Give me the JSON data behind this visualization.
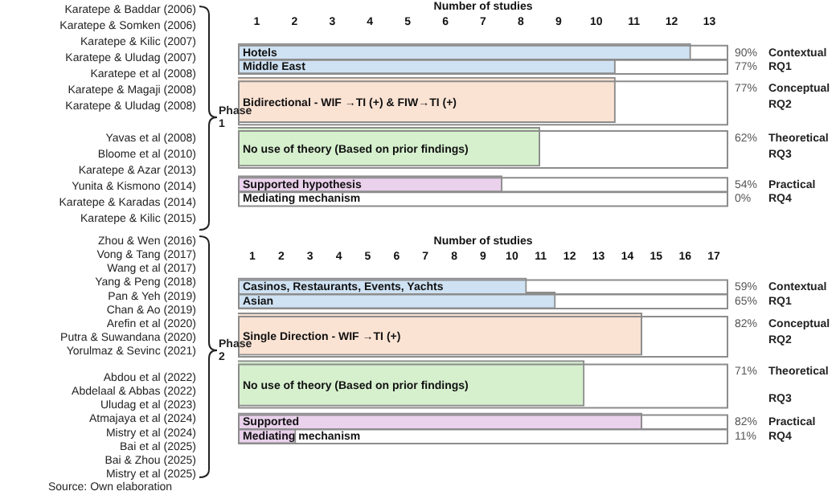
{
  "chart_data": [
    {
      "type": "bar",
      "orientation": "horizontal",
      "xlabel": "Number of studies",
      "xlim": [
        0,
        13
      ],
      "xticks": [
        {
          "value": 0.5,
          "label": "1"
        },
        {
          "value": 1.5,
          "label": "2"
        },
        {
          "value": 2.5,
          "label": "3"
        },
        {
          "value": 3.5,
          "label": "4"
        },
        {
          "value": 4.5,
          "label": "5"
        },
        {
          "value": 5.5,
          "label": "6"
        },
        {
          "value": 6.5,
          "label": "7"
        },
        {
          "value": 7.5,
          "label": "8"
        },
        {
          "value": 8.5,
          "label": "9"
        },
        {
          "value": 9.5,
          "label": "10"
        },
        {
          "value": 10.5,
          "label": "11"
        },
        {
          "value": 11.5,
          "label": "12"
        },
        {
          "value": 12.5,
          "label": "13"
        }
      ],
      "categories": [
        "Hotels",
        "Middle East",
        "Bidirectional - WIF →TI (+) & FIW→TI (+)",
        "No use of theory (Based on prior findings)",
        "Supported hypothesis",
        "Mediating mechanism"
      ],
      "values": [
        12,
        10,
        10,
        8,
        7,
        0
      ],
      "colors": [
        "#cfe2f3",
        "#cfe2f3",
        "#fbe3d4",
        "#d6f0ce",
        "#ead1ec",
        "#ffffff"
      ],
      "grid": false,
      "legend": false,
      "annotations": [
        "Karatepe & Baddar (2006)",
        "Karatepe & Somken (2006)",
        "Karatepe & Kilic (2007)",
        "Karatepe & Uludag (2007)",
        "Karatepe et al (2008)",
        "Karatepe & Magaji (2008)",
        "Karatepe & Uludag (2008)",
        "Yavas et al (2008)",
        "Bloome et al (2010)",
        "Karatepe & Azar (2013)",
        "Yunita & Kismono (2014)",
        "Karatepe & Karadas (2014)",
        "Karatepe & Kilic (2015)",
        "Phase 1",
        "Contextual",
        "RQ1",
        "Conceptual",
        "RQ2",
        "Theoretical",
        "RQ3",
        "Practical",
        "RQ4",
        "90%",
        "77%",
        "77%",
        "62%",
        "54%",
        "0%"
      ]
    },
    {
      "type": "bar",
      "orientation": "horizontal",
      "xlabel": "Number of studies",
      "xlim": [
        0,
        17
      ],
      "xticks": [
        {
          "value": 0.5,
          "label": "1"
        },
        {
          "value": 1.5,
          "label": "2"
        },
        {
          "value": 2.5,
          "label": "3"
        },
        {
          "value": 3.5,
          "label": "4"
        },
        {
          "value": 4.5,
          "label": "5"
        },
        {
          "value": 5.5,
          "label": "6"
        },
        {
          "value": 6.5,
          "label": "7"
        },
        {
          "value": 7.5,
          "label": "8"
        },
        {
          "value": 8.5,
          "label": "9"
        },
        {
          "value": 9.5,
          "label": "10"
        },
        {
          "value": 10.5,
          "label": "11"
        },
        {
          "value": 11.5,
          "label": "12"
        },
        {
          "value": 12.5,
          "label": "13"
        },
        {
          "value": 13.5,
          "label": "14"
        },
        {
          "value": 14.5,
          "label": "15"
        },
        {
          "value": 15.5,
          "label": "16"
        },
        {
          "value": 16.5,
          "label": "17"
        }
      ],
      "categories": [
        "Casinos, Restaurants, Events, Yachts",
        "Asian",
        "Single Direction - WIF →TI (+)",
        "No use of theory (Based on prior findings)",
        "Supported",
        "Mediating mechanism"
      ],
      "values": [
        10,
        11,
        14,
        12,
        14,
        2
      ],
      "colors": [
        "#cfe2f3",
        "#cfe2f3",
        "#fbe3d4",
        "#d6f0ce",
        "#ead1ec",
        "#ead1ec"
      ],
      "grid": false,
      "legend": false,
      "annotations": [
        "Zhou & Wen (2016)",
        "Vong & Tang (2017)",
        "Wang et al (2017)",
        "Yang & Peng (2018)",
        "Pan & Yeh (2019)",
        "Chan & Ao (2019)",
        "Arefin et al (2020)",
        "Putra & Suwandana (2020)",
        "Yorulmaz & Sevinc (2021)",
        "Abdou et al (2022)",
        "Abdelaal & Abbas (2022)",
        "Uludag et al (2023)",
        "Atmajaya et al (2024)",
        "Mistry et al (2024)",
        "Bai et al (2025)",
        "Bai & Zhou (2025)",
        "Mistry et al (2025)",
        "Phase 2",
        "Contextual",
        "RQ1",
        "Conceptual",
        "RQ2",
        "Theoretical",
        "RQ3",
        "Practical",
        "RQ4",
        "Source: Own elaboration",
        "59%",
        "65%",
        "82%",
        "71%",
        "82%",
        "11%"
      ]
    }
  ]
}
